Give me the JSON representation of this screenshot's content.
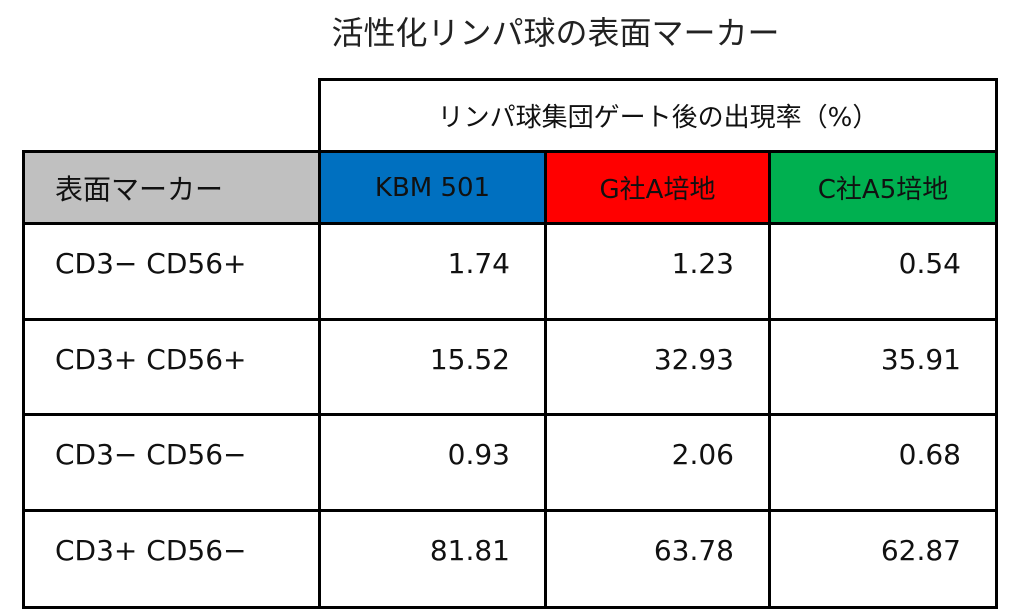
{
  "title": "活性化リンパ球の表面マーカー",
  "table": {
    "group_header": "リンパ球集団ゲート後の出現率（%）",
    "columns": [
      "表面マーカー",
      "KBM 501",
      "G社A培地",
      "C社A5培地"
    ],
    "rows": [
      [
        "CD3− CD56+",
        "1.74",
        "1.23",
        "0.54"
      ],
      [
        "CD3+ CD56+",
        "15.52",
        "32.93",
        "35.91"
      ],
      [
        "CD3− CD56−",
        "0.93",
        "2.06",
        "0.68"
      ],
      [
        "CD3+ CD56−",
        "81.81",
        "63.78",
        "62.87"
      ]
    ]
  }
}
